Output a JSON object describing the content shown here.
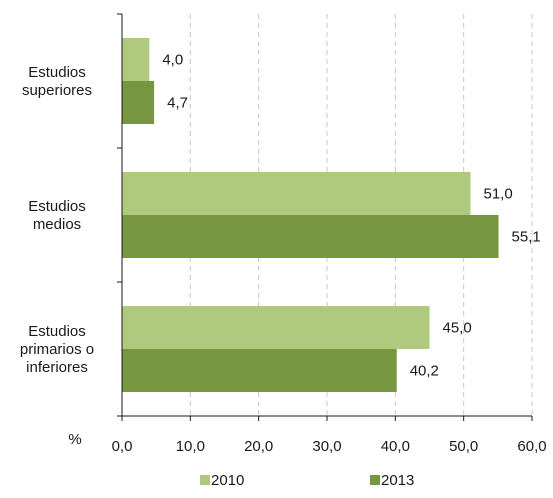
{
  "chart_data": {
    "type": "bar",
    "orientation": "horizontal",
    "categories": [
      "Estudios superiores",
      "Estudios medios",
      "Estudios primarios o inferiores"
    ],
    "category_label_lines": [
      [
        "Estudios",
        "superiores"
      ],
      [
        "Estudios",
        "medios"
      ],
      [
        "Estudios",
        "primarios o",
        "inferiores"
      ]
    ],
    "series": [
      {
        "name": "2010",
        "color": "#afc97e",
        "values": [
          4.0,
          51.0,
          45.0
        ],
        "value_labels": [
          "4,0",
          "51,0",
          "45,0"
        ]
      },
      {
        "name": "2013",
        "color": "#76963f",
        "values": [
          4.7,
          55.1,
          40.2
        ],
        "value_labels": [
          "4,7",
          "55,1",
          "40,2"
        ]
      }
    ],
    "xlim": [
      0,
      60
    ],
    "xticks": [
      0,
      10,
      20,
      30,
      40,
      50,
      60
    ],
    "xtick_labels": [
      "0,0",
      "10,0",
      "20,0",
      "30,0",
      "40,0",
      "50,0",
      "60,0"
    ],
    "unit_label": "%",
    "title": "",
    "xlabel": "",
    "ylabel": "",
    "grid": "vertical-dashed",
    "legend_position": "bottom"
  }
}
